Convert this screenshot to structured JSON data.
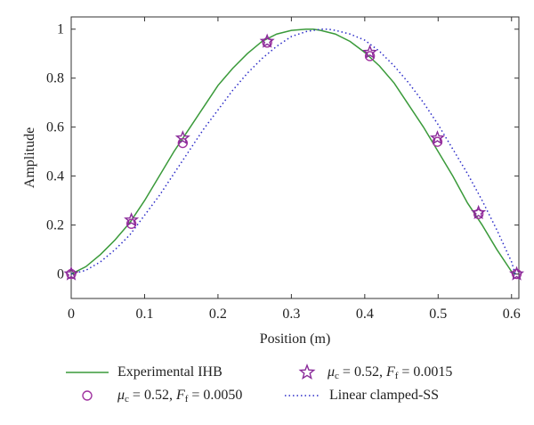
{
  "chart_data": {
    "type": "line",
    "xlabel": "Position (m)",
    "ylabel": "Amplitude",
    "xlim": [
      0,
      0.61
    ],
    "ylim": [
      -0.1,
      1.05
    ],
    "xticks": [
      0,
      0.1,
      0.2,
      0.3,
      0.4,
      0.5,
      0.6
    ],
    "xtick_labels": [
      "0",
      "0.1",
      "0.2",
      "0.3",
      "0.4",
      "0.5",
      "0.6"
    ],
    "yticks": [
      0,
      0.2,
      0.4,
      0.6,
      0.8,
      1
    ],
    "ytick_labels": [
      "0",
      "0.2",
      "0.4",
      "0.6",
      "0.8",
      "1"
    ],
    "grid": false,
    "legend_position": "bottom",
    "series": [
      {
        "name": "Experimental IHB",
        "style": "solid-line",
        "color": "#3a9a3a",
        "x": [
          0,
          0.02,
          0.04,
          0.06,
          0.08,
          0.1,
          0.12,
          0.14,
          0.16,
          0.18,
          0.2,
          0.22,
          0.24,
          0.26,
          0.28,
          0.3,
          0.32,
          0.33,
          0.34,
          0.36,
          0.38,
          0.4,
          0.42,
          0.44,
          0.46,
          0.48,
          0.5,
          0.52,
          0.54,
          0.56,
          0.58,
          0.6,
          0.605
        ],
        "y": [
          0,
          0.03,
          0.08,
          0.14,
          0.21,
          0.3,
          0.4,
          0.5,
          0.59,
          0.68,
          0.77,
          0.84,
          0.9,
          0.95,
          0.98,
          0.995,
          1.0,
          1.0,
          0.995,
          0.98,
          0.95,
          0.905,
          0.85,
          0.78,
          0.69,
          0.6,
          0.5,
          0.4,
          0.29,
          0.2,
          0.1,
          0.01,
          0
        ]
      },
      {
        "name": "Linear clamped-SS",
        "style": "dotted-line",
        "color": "#2b2bc8",
        "x": [
          0,
          0.02,
          0.04,
          0.06,
          0.08,
          0.1,
          0.12,
          0.14,
          0.16,
          0.18,
          0.2,
          0.22,
          0.24,
          0.26,
          0.28,
          0.3,
          0.32,
          0.34,
          0.35,
          0.36,
          0.38,
          0.4,
          0.42,
          0.44,
          0.46,
          0.48,
          0.5,
          0.52,
          0.54,
          0.56,
          0.58,
          0.6,
          0.605
        ],
        "y": [
          0,
          0.015,
          0.05,
          0.1,
          0.16,
          0.24,
          0.32,
          0.41,
          0.5,
          0.59,
          0.67,
          0.75,
          0.82,
          0.88,
          0.93,
          0.97,
          0.99,
          1.0,
          1.0,
          0.995,
          0.98,
          0.955,
          0.91,
          0.85,
          0.78,
          0.7,
          0.61,
          0.51,
          0.41,
          0.3,
          0.18,
          0.05,
          0
        ]
      },
      {
        "name": "μc = 0.52, Ff = 0.0015",
        "style": "star-markers",
        "color": "#8a2b9a",
        "x": [
          0,
          0.082,
          0.152,
          0.267,
          0.407,
          0.499,
          0.555,
          0.607
        ],
        "y": [
          0,
          0.22,
          0.555,
          0.95,
          0.905,
          0.555,
          0.25,
          0
        ]
      },
      {
        "name": "μc = 0.52, Ff = 0.0050",
        "style": "circle-markers",
        "color": "#a033a0",
        "x": [
          0,
          0.082,
          0.152,
          0.267,
          0.407,
          0.499,
          0.555,
          0.607
        ],
        "y": [
          0,
          0.205,
          0.535,
          0.945,
          0.89,
          0.54,
          0.245,
          0
        ]
      }
    ],
    "legend": {
      "item1": "Experimental IHB",
      "item2_mu_symbol": "μ",
      "item2_mu_sub": "c",
      "item2_mu_value": " = 0.52, ",
      "item2_f_symbol": "F",
      "item2_f_sub": "f",
      "item2_f_value": " = 0.0015",
      "item3_mu_symbol": "μ",
      "item3_mu_sub": "c",
      "item3_mu_value": " = 0.52, ",
      "item3_f_symbol": "F",
      "item3_f_sub": "f",
      "item3_f_value": " = 0.0050",
      "item4": "Linear clamped-SS"
    }
  }
}
